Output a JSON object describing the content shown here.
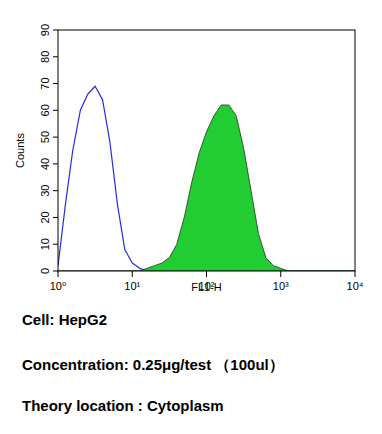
{
  "chart_data": {
    "type": "line",
    "x_label": "FL1-H",
    "y_label": "Counts",
    "annotations": [
      "Cell: HepG2",
      "Concentration: 0.25μg/test （100ul）",
      "Theory location : Cytoplasm"
    ],
    "log": "x",
    "xlim": [
      1,
      10000
    ],
    "xticks": [
      {
        "value": 1,
        "label": "10⁰"
      },
      {
        "value": 10,
        "label": "10¹"
      },
      {
        "value": 100,
        "label": "10²"
      },
      {
        "value": 1000,
        "label": "10³"
      },
      {
        "value": 10000,
        "label": "10⁴"
      }
    ],
    "ylim": [
      0,
      90
    ],
    "yticks": [
      0,
      10,
      20,
      30,
      40,
      50,
      60,
      70,
      80,
      90
    ],
    "grid": false,
    "x": [
      1,
      1.26,
      1.58,
      2,
      2.51,
      3.16,
      3.98,
      5.01,
      6.31,
      7.94,
      10,
      12.6,
      15.8,
      20,
      25.1,
      31.6,
      39.8,
      50.1,
      63.1,
      79.4,
      100,
      126,
      158,
      200,
      251,
      316,
      398,
      501,
      631,
      794,
      1000,
      1260,
      1580,
      2000,
      2510,
      3160,
      3980,
      5010,
      6310,
      7940,
      10000
    ],
    "series": [
      {
        "type": "line",
        "color": "#2a2ae0",
        "values": [
          2,
          25,
          45,
          60,
          66,
          69,
          64,
          48,
          25,
          8,
          3,
          1,
          0,
          0,
          0,
          0,
          0,
          0,
          0,
          0,
          0,
          0,
          0,
          0,
          0,
          0,
          0,
          0,
          0,
          0,
          0,
          0,
          0,
          0,
          0,
          0,
          0,
          0,
          0,
          0,
          0
        ]
      },
      {
        "type": "area",
        "color": "#22cc33",
        "values": [
          0,
          0,
          0,
          0,
          0,
          0,
          0,
          0,
          0,
          0,
          0,
          0,
          1,
          2,
          3,
          5,
          10,
          20,
          33,
          44,
          52,
          58,
          62,
          62,
          58,
          46,
          30,
          14,
          5,
          2,
          1,
          0,
          0,
          0,
          0,
          0,
          0,
          0,
          0,
          0,
          0
        ]
      }
    ]
  }
}
